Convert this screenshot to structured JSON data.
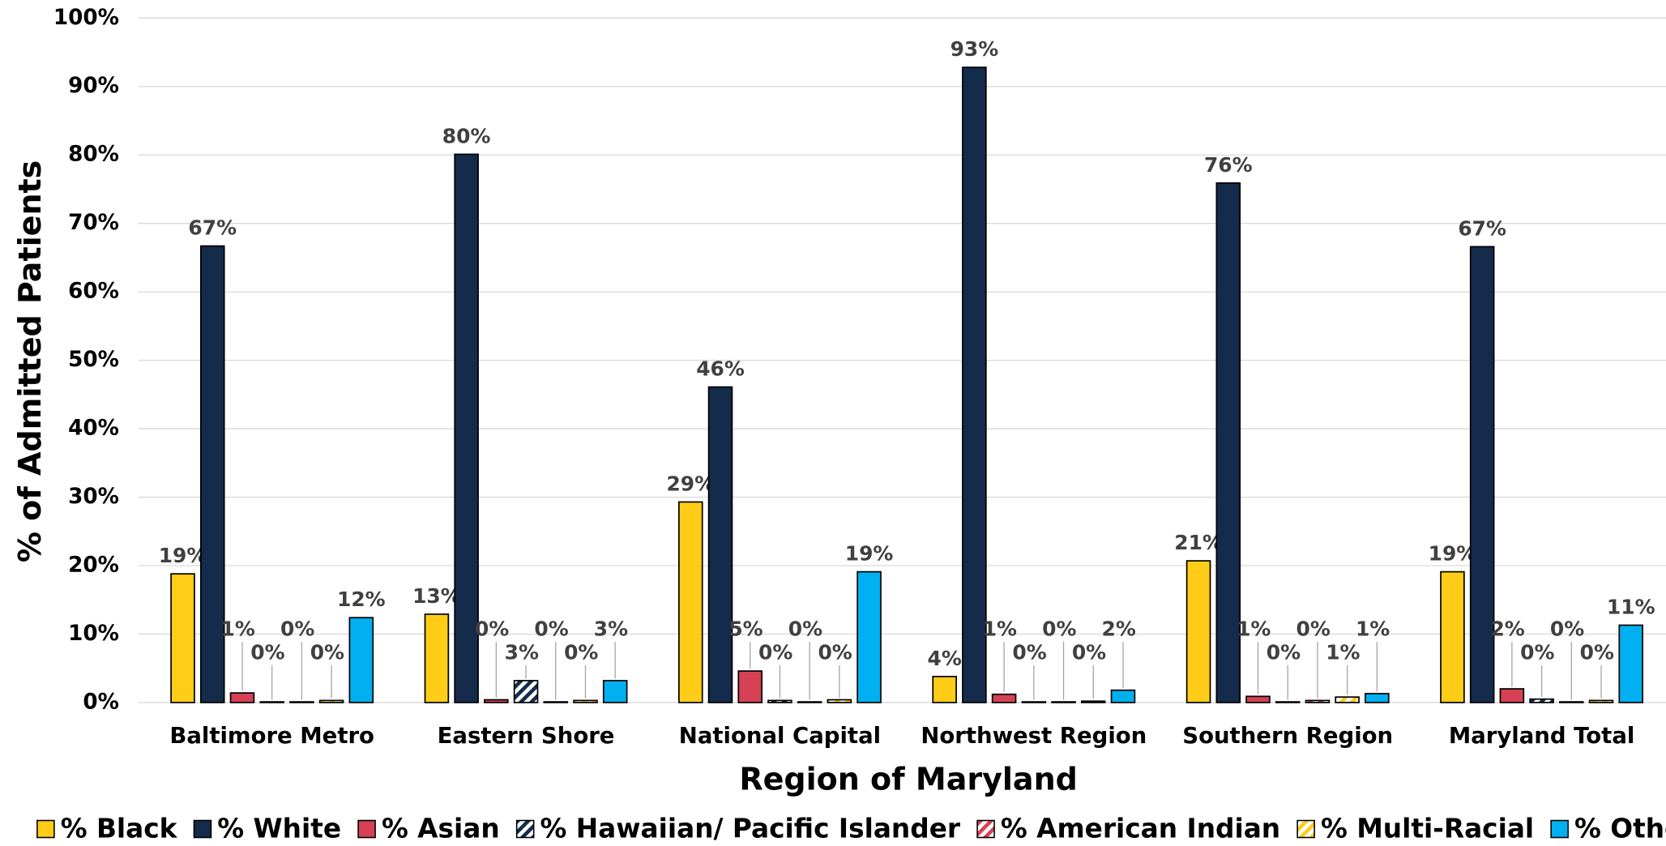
{
  "chart_data": {
    "type": "bar",
    "y_axis_label": "% of Admitted Patients",
    "x_axis_label": "Region of Maryland",
    "categories": [
      "Baltimore Metro",
      "Eastern Shore",
      "National Capital",
      "Northwest Region",
      "Southern Region",
      "Maryland Total"
    ],
    "ylim": [
      0,
      100
    ],
    "yticks": [
      {
        "value": 0,
        "label": "0%"
      },
      {
        "value": 10,
        "label": "10%"
      },
      {
        "value": 20,
        "label": "20%"
      },
      {
        "value": 30,
        "label": "30%"
      },
      {
        "value": 40,
        "label": "40%"
      },
      {
        "value": 50,
        "label": "50%"
      },
      {
        "value": 60,
        "label": "60%"
      },
      {
        "value": 70,
        "label": "70%"
      },
      {
        "value": 80,
        "label": "80%"
      },
      {
        "value": 90,
        "label": "90%"
      },
      {
        "value": 100,
        "label": "100%"
      }
    ],
    "grid": true,
    "legend": "bottom",
    "series": [
      {
        "name": "% Black",
        "color": "#FFCC17",
        "values": [
          18.8,
          12.9,
          29.3,
          3.8,
          20.7,
          19.1
        ],
        "value_labels": [
          "19%",
          "13%",
          "29%",
          "4%",
          "21%",
          "19%"
        ]
      },
      {
        "name": "% White",
        "color": "#142B4C",
        "values": [
          66.7,
          80.1,
          46.1,
          92.8,
          75.9,
          66.6
        ],
        "value_labels": [
          "67%",
          "80%",
          "46%",
          "93%",
          "76%",
          "67%"
        ]
      },
      {
        "name": "% Asian",
        "color": "#D64155",
        "values": [
          1.4,
          0.4,
          4.6,
          1.2,
          0.9,
          2.0
        ],
        "value_labels": [
          "1%",
          "0%",
          "5%",
          "1%",
          "1%",
          "2%"
        ]
      },
      {
        "name": "% Hawaiian/ Pacific Islander",
        "color": "#142B4C",
        "pattern": "hatch",
        "values": [
          0.1,
          3.2,
          0.3,
          0.1,
          0.1,
          0.5
        ],
        "value_labels": [
          "0%",
          "3%",
          "0%",
          "0%",
          "0%",
          "0%"
        ]
      },
      {
        "name": "% American Indian",
        "color": "#D64155",
        "pattern": "hatch",
        "values": [
          0.1,
          0.1,
          0.1,
          0.1,
          0.3,
          0.1
        ],
        "value_labels": [
          "0%",
          "0%",
          "0%",
          "0%",
          "0%",
          "0%"
        ]
      },
      {
        "name": "% Multi-Racial",
        "color": "#FFCC17",
        "pattern": "hatch",
        "values": [
          0.3,
          0.3,
          0.4,
          0.2,
          0.8,
          0.3
        ],
        "value_labels": [
          "0%",
          "0%",
          "0%",
          "0%",
          "1%",
          "0%"
        ]
      },
      {
        "name": "% Other",
        "color": "#00B0F0",
        "values": [
          12.4,
          3.2,
          19.1,
          1.8,
          1.3,
          11.3
        ],
        "value_labels": [
          "12%",
          "3%",
          "19%",
          "2%",
          "1%",
          "11%"
        ]
      }
    ]
  }
}
